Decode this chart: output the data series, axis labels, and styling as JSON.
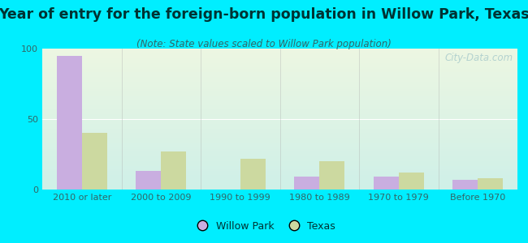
{
  "title": "Year of entry for the foreign-born population in Willow Park, Texas",
  "subtitle": "(Note: State values scaled to Willow Park population)",
  "categories": [
    "2010 or later",
    "2000 to 2009",
    "1990 to 1999",
    "1980 to 1989",
    "1970 to 1979",
    "Before 1970"
  ],
  "willow_park": [
    95,
    13,
    0,
    9,
    9,
    7
  ],
  "texas": [
    40,
    27,
    22,
    20,
    12,
    8
  ],
  "willow_park_color": "#c9aee0",
  "texas_color": "#ccd9a0",
  "background_outer": "#00eeff",
  "gradient_top": "#edf7e2",
  "gradient_bottom": "#cff0e8",
  "title_color": "#003333",
  "subtitle_color": "#336666",
  "tick_color": "#336666",
  "ylim": [
    0,
    100
  ],
  "yticks": [
    0,
    50,
    100
  ],
  "bar_width": 0.32,
  "title_fontsize": 12.5,
  "subtitle_fontsize": 8.5,
  "tick_fontsize": 8,
  "legend_fontsize": 9,
  "watermark_text": "City-Data.com",
  "watermark_color": "#aacccc"
}
